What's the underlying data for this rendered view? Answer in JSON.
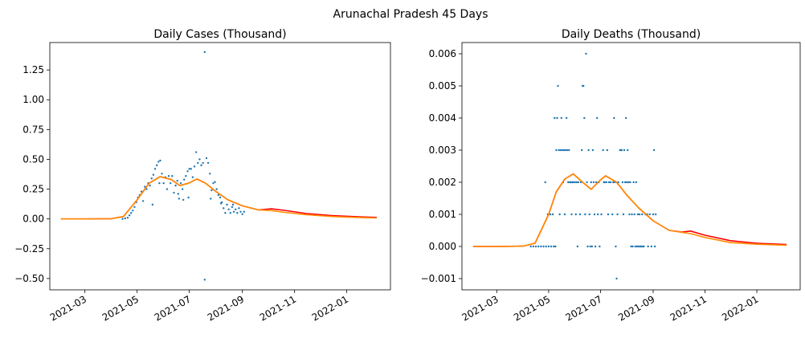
{
  "figure": {
    "suptitle": "Arunachal Pradesh 45 Days"
  },
  "colors": {
    "scatter": "#1f77b4",
    "fit_red": "#ff0000",
    "fit_orange": "#ff8c00",
    "axis": "#000000"
  },
  "chart_data": [
    {
      "type": "scatter",
      "title": "Daily Cases (Thousand)",
      "xlabel": "",
      "ylabel": "",
      "x_range": [
        "2021-01-19",
        "2022-02-21"
      ],
      "ylim": [
        -0.595,
        1.48
      ],
      "y_ticks": [
        -0.5,
        -0.25,
        0.0,
        0.25,
        0.5,
        0.75,
        1.0,
        1.25
      ],
      "y_tick_labels": [
        "−0.50",
        "−0.25",
        "0.00",
        "0.25",
        "0.50",
        "0.75",
        "1.00",
        "1.25"
      ],
      "x_ticks": [
        "2021-03-01",
        "2021-05-01",
        "2021-07-01",
        "2021-09-01",
        "2021-11-01",
        "2022-01-01"
      ],
      "x_tick_labels": [
        "2021-03",
        "2021-05",
        "2021-07",
        "2021-09",
        "2021-11",
        "2022-01"
      ],
      "grid": false,
      "scatter_points": [
        [
          "2021-04-14",
          0.0
        ],
        [
          "2021-04-17",
          0.005
        ],
        [
          "2021-04-20",
          0.01
        ],
        [
          "2021-04-22",
          0.03
        ],
        [
          "2021-04-24",
          0.05
        ],
        [
          "2021-04-26",
          0.07
        ],
        [
          "2021-04-28",
          0.1
        ],
        [
          "2021-04-30",
          0.14
        ],
        [
          "2021-05-02",
          0.18
        ],
        [
          "2021-05-04",
          0.2
        ],
        [
          "2021-05-06",
          0.23
        ],
        [
          "2021-05-08",
          0.15
        ],
        [
          "2021-05-10",
          0.27
        ],
        [
          "2021-05-12",
          0.25
        ],
        [
          "2021-05-14",
          0.3
        ],
        [
          "2021-05-16",
          0.28
        ],
        [
          "2021-05-18",
          0.34
        ],
        [
          "2021-05-20",
          0.37
        ],
        [
          "2021-05-22",
          0.42
        ],
        [
          "2021-05-24",
          0.45
        ],
        [
          "2021-05-26",
          0.48
        ],
        [
          "2021-05-28",
          0.49
        ],
        [
          "2021-05-30",
          0.38
        ],
        [
          "2021-06-01",
          0.3
        ],
        [
          "2021-06-03",
          0.35
        ],
        [
          "2021-06-05",
          0.25
        ],
        [
          "2021-06-07",
          0.36
        ],
        [
          "2021-06-09",
          0.3
        ],
        [
          "2021-06-11",
          0.36
        ],
        [
          "2021-06-13",
          0.22
        ],
        [
          "2021-06-15",
          0.28
        ],
        [
          "2021-06-17",
          0.32
        ],
        [
          "2021-06-19",
          0.17
        ],
        [
          "2021-06-21",
          0.3
        ],
        [
          "2021-06-23",
          0.25
        ],
        [
          "2021-06-25",
          0.33
        ],
        [
          "2021-06-27",
          0.36
        ],
        [
          "2021-06-29",
          0.4
        ],
        [
          "2021-07-01",
          0.42
        ],
        [
          "2021-07-03",
          0.42
        ],
        [
          "2021-07-05",
          0.35
        ],
        [
          "2021-07-07",
          0.44
        ],
        [
          "2021-07-09",
          0.56
        ],
        [
          "2021-07-11",
          0.47
        ],
        [
          "2021-07-13",
          0.5
        ],
        [
          "2021-07-15",
          0.45
        ],
        [
          "2021-07-17",
          0.47
        ],
        [
          "2021-07-19",
          1.4
        ],
        [
          "2021-07-21",
          0.51
        ],
        [
          "2021-07-23",
          0.47
        ],
        [
          "2021-07-25",
          0.38
        ],
        [
          "2021-07-27",
          0.24
        ],
        [
          "2021-07-29",
          0.3
        ],
        [
          "2021-07-31",
          0.31
        ],
        [
          "2021-08-02",
          0.25
        ],
        [
          "2021-08-04",
          0.2
        ],
        [
          "2021-08-06",
          0.18
        ],
        [
          "2021-08-08",
          0.14
        ],
        [
          "2021-08-10",
          0.09
        ],
        [
          "2021-08-12",
          0.05
        ],
        [
          "2021-08-14",
          0.12
        ],
        [
          "2021-08-16",
          0.08
        ],
        [
          "2021-08-18",
          0.05
        ],
        [
          "2021-08-20",
          0.1
        ],
        [
          "2021-08-22",
          0.06
        ],
        [
          "2021-08-24",
          0.08
        ],
        [
          "2021-08-26",
          0.05
        ],
        [
          "2021-08-28",
          0.09
        ],
        [
          "2021-08-30",
          0.06
        ],
        [
          "2021-09-01",
          0.04
        ],
        [
          "2021-09-03",
          0.06
        ],
        [
          "2021-07-19",
          -0.51
        ],
        [
          "2021-05-19",
          0.12
        ],
        [
          "2021-05-27",
          0.3
        ],
        [
          "2021-06-18",
          0.21
        ],
        [
          "2021-07-26",
          0.17
        ],
        [
          "2021-08-07",
          0.13
        ],
        [
          "2021-08-21",
          0.12
        ],
        [
          "2021-06-24",
          0.16
        ],
        [
          "2021-06-30",
          0.18
        ]
      ],
      "fit_red": [
        [
          "2021-02-01",
          0.0
        ],
        [
          "2021-03-01",
          0.0
        ],
        [
          "2021-04-01",
          0.002
        ],
        [
          "2021-04-15",
          0.02
        ],
        [
          "2021-05-01",
          0.16
        ],
        [
          "2021-05-15",
          0.3
        ],
        [
          "2021-05-28",
          0.355
        ],
        [
          "2021-06-10",
          0.33
        ],
        [
          "2021-06-20",
          0.28
        ],
        [
          "2021-06-30",
          0.3
        ],
        [
          "2021-07-10",
          0.335
        ],
        [
          "2021-07-20",
          0.3
        ],
        [
          "2021-08-01",
          0.23
        ],
        [
          "2021-08-15",
          0.16
        ],
        [
          "2021-09-01",
          0.11
        ],
        [
          "2021-09-20",
          0.075
        ],
        [
          "2021-10-05",
          0.085
        ],
        [
          "2021-10-20",
          0.072
        ],
        [
          "2021-11-15",
          0.045
        ],
        [
          "2021-12-15",
          0.028
        ],
        [
          "2022-01-15",
          0.018
        ],
        [
          "2022-02-05",
          0.013
        ]
      ],
      "fit_orange": [
        [
          "2021-02-01",
          0.0
        ],
        [
          "2021-03-01",
          0.0
        ],
        [
          "2021-04-01",
          0.002
        ],
        [
          "2021-04-15",
          0.02
        ],
        [
          "2021-05-01",
          0.16
        ],
        [
          "2021-05-15",
          0.3
        ],
        [
          "2021-05-28",
          0.355
        ],
        [
          "2021-06-10",
          0.33
        ],
        [
          "2021-06-20",
          0.28
        ],
        [
          "2021-06-30",
          0.3
        ],
        [
          "2021-07-10",
          0.335
        ],
        [
          "2021-07-20",
          0.3
        ],
        [
          "2021-08-01",
          0.23
        ],
        [
          "2021-08-15",
          0.16
        ],
        [
          "2021-09-01",
          0.11
        ],
        [
          "2021-09-20",
          0.075
        ],
        [
          "2021-10-05",
          0.07
        ],
        [
          "2021-10-20",
          0.055
        ],
        [
          "2021-11-15",
          0.035
        ],
        [
          "2021-12-15",
          0.02
        ],
        [
          "2022-01-15",
          0.012
        ],
        [
          "2022-02-05",
          0.008
        ]
      ]
    },
    {
      "type": "scatter",
      "title": "Daily Deaths (Thousand)",
      "xlabel": "",
      "ylabel": "",
      "x_range": [
        "2021-01-19",
        "2022-02-21"
      ],
      "ylim": [
        -0.00135,
        0.00635
      ],
      "y_ticks": [
        -0.001,
        0.0,
        0.001,
        0.002,
        0.003,
        0.004,
        0.005,
        0.006
      ],
      "y_tick_labels": [
        "−0.001",
        "0.000",
        "0.001",
        "0.002",
        "0.003",
        "0.004",
        "0.005",
        "0.006"
      ],
      "x_ticks": [
        "2021-03-01",
        "2021-05-01",
        "2021-07-01",
        "2021-09-01",
        "2021-11-01",
        "2022-01-01"
      ],
      "x_tick_labels": [
        "2021-03",
        "2021-05",
        "2021-07",
        "2021-09",
        "2021-11",
        "2022-01"
      ],
      "grid": false,
      "scatter_points": [
        [
          "2021-04-10",
          0.0
        ],
        [
          "2021-04-13",
          0.0
        ],
        [
          "2021-04-16",
          0.0
        ],
        [
          "2021-04-19",
          0.0
        ],
        [
          "2021-04-22",
          0.0
        ],
        [
          "2021-04-25",
          0.0
        ],
        [
          "2021-04-27",
          0.002
        ],
        [
          "2021-04-28",
          0.0
        ],
        [
          "2021-04-30",
          0.001
        ],
        [
          "2021-05-01",
          0.0
        ],
        [
          "2021-05-03",
          0.001
        ],
        [
          "2021-05-04",
          0.0
        ],
        [
          "2021-05-06",
          0.001
        ],
        [
          "2021-05-07",
          0.0
        ],
        [
          "2021-05-08",
          0.004
        ],
        [
          "2021-05-09",
          0.0
        ],
        [
          "2021-05-10",
          0.003
        ],
        [
          "2021-05-11",
          0.004
        ],
        [
          "2021-05-12",
          0.005
        ],
        [
          "2021-05-13",
          0.003
        ],
        [
          "2021-05-14",
          0.001
        ],
        [
          "2021-05-15",
          0.003
        ],
        [
          "2021-05-16",
          0.004
        ],
        [
          "2021-05-17",
          0.003
        ],
        [
          "2021-05-18",
          0.002
        ],
        [
          "2021-05-19",
          0.003
        ],
        [
          "2021-05-20",
          0.001
        ],
        [
          "2021-05-21",
          0.003
        ],
        [
          "2021-05-22",
          0.004
        ],
        [
          "2021-05-23",
          0.003
        ],
        [
          "2021-05-24",
          0.002
        ],
        [
          "2021-05-25",
          0.003
        ],
        [
          "2021-05-26",
          0.002
        ],
        [
          "2021-05-27",
          0.002
        ],
        [
          "2021-05-28",
          0.001
        ],
        [
          "2021-05-29",
          0.002
        ],
        [
          "2021-05-30",
          0.002
        ],
        [
          "2021-06-01",
          0.002
        ],
        [
          "2021-06-02",
          0.001
        ],
        [
          "2021-06-03",
          0.002
        ],
        [
          "2021-06-04",
          0.0
        ],
        [
          "2021-06-05",
          0.002
        ],
        [
          "2021-06-07",
          0.001
        ],
        [
          "2021-06-08",
          0.002
        ],
        [
          "2021-06-09",
          0.003
        ],
        [
          "2021-06-10",
          0.005
        ],
        [
          "2021-06-11",
          0.005
        ],
        [
          "2021-06-12",
          0.004
        ],
        [
          "2021-06-13",
          0.001
        ],
        [
          "2021-06-14",
          0.006
        ],
        [
          "2021-06-15",
          0.002
        ],
        [
          "2021-06-16",
          0.0
        ],
        [
          "2021-06-17",
          0.003
        ],
        [
          "2021-06-18",
          0.001
        ],
        [
          "2021-06-19",
          0.0
        ],
        [
          "2021-06-20",
          0.002
        ],
        [
          "2021-06-21",
          0.0
        ],
        [
          "2021-06-22",
          0.003
        ],
        [
          "2021-06-23",
          0.002
        ],
        [
          "2021-06-24",
          0.001
        ],
        [
          "2021-06-25",
          0.0
        ],
        [
          "2021-06-26",
          0.002
        ],
        [
          "2021-06-27",
          0.004
        ],
        [
          "2021-06-28",
          0.001
        ],
        [
          "2021-06-29",
          0.002
        ],
        [
          "2021-06-30",
          0.0
        ],
        [
          "2021-07-02",
          0.001
        ],
        [
          "2021-07-04",
          0.003
        ],
        [
          "2021-07-05",
          0.002
        ],
        [
          "2021-07-06",
          0.002
        ],
        [
          "2021-07-08",
          0.002
        ],
        [
          "2021-07-09",
          0.003
        ],
        [
          "2021-07-10",
          0.001
        ],
        [
          "2021-07-11",
          0.002
        ],
        [
          "2021-07-13",
          0.002
        ],
        [
          "2021-07-15",
          0.001
        ],
        [
          "2021-07-16",
          0.002
        ],
        [
          "2021-07-17",
          0.004
        ],
        [
          "2021-07-18",
          0.002
        ],
        [
          "2021-07-19",
          0.0
        ],
        [
          "2021-07-20",
          -0.001
        ],
        [
          "2021-07-21",
          0.001
        ],
        [
          "2021-07-22",
          0.002
        ],
        [
          "2021-07-24",
          0.003
        ],
        [
          "2021-07-25",
          0.003
        ],
        [
          "2021-07-26",
          0.003
        ],
        [
          "2021-07-27",
          0.002
        ],
        [
          "2021-07-28",
          0.001
        ],
        [
          "2021-07-29",
          0.003
        ],
        [
          "2021-07-30",
          0.002
        ],
        [
          "2021-07-31",
          0.004
        ],
        [
          "2021-08-01",
          0.002
        ],
        [
          "2021-08-02",
          0.003
        ],
        [
          "2021-08-03",
          0.002
        ],
        [
          "2021-08-04",
          0.001
        ],
        [
          "2021-08-05",
          0.002
        ],
        [
          "2021-08-06",
          0.0
        ],
        [
          "2021-08-07",
          0.001
        ],
        [
          "2021-08-08",
          0.0
        ],
        [
          "2021-08-09",
          0.002
        ],
        [
          "2021-08-10",
          0.001
        ],
        [
          "2021-08-11",
          0.0
        ],
        [
          "2021-08-12",
          0.002
        ],
        [
          "2021-08-13",
          0.0
        ],
        [
          "2021-08-14",
          0.001
        ],
        [
          "2021-08-15",
          0.0
        ],
        [
          "2021-08-16",
          0.001
        ],
        [
          "2021-08-17",
          0.0
        ],
        [
          "2021-08-18",
          0.0
        ],
        [
          "2021-08-19",
          0.001
        ],
        [
          "2021-08-20",
          0.0
        ],
        [
          "2021-08-21",
          0.0
        ],
        [
          "2021-08-23",
          0.001
        ],
        [
          "2021-08-25",
          0.001
        ],
        [
          "2021-08-26",
          0.0
        ],
        [
          "2021-08-28",
          0.001
        ],
        [
          "2021-08-30",
          0.0
        ],
        [
          "2021-09-01",
          0.001
        ],
        [
          "2021-09-02",
          0.003
        ],
        [
          "2021-09-03",
          0.0
        ],
        [
          "2021-09-04",
          0.001
        ]
      ],
      "fit_red": [
        [
          "2021-02-01",
          0.0
        ],
        [
          "2021-03-01",
          0.0
        ],
        [
          "2021-04-01",
          1e-05
        ],
        [
          "2021-04-15",
          0.0001
        ],
        [
          "2021-05-01",
          0.001
        ],
        [
          "2021-05-10",
          0.0017
        ],
        [
          "2021-05-20",
          0.0021
        ],
        [
          "2021-05-30",
          0.00226
        ],
        [
          "2021-06-10",
          0.002
        ],
        [
          "2021-06-20",
          0.00178
        ],
        [
          "2021-06-30",
          0.00205
        ],
        [
          "2021-07-07",
          0.0022
        ],
        [
          "2021-07-20",
          0.002
        ],
        [
          "2021-08-01",
          0.0016
        ],
        [
          "2021-08-15",
          0.0012
        ],
        [
          "2021-09-01",
          0.0008
        ],
        [
          "2021-09-20",
          0.0005
        ],
        [
          "2021-10-05",
          0.00045
        ],
        [
          "2021-10-15",
          0.00048
        ],
        [
          "2021-11-01",
          0.00035
        ],
        [
          "2021-12-01",
          0.00018
        ],
        [
          "2022-01-01",
          0.0001
        ],
        [
          "2022-02-05",
          6e-05
        ]
      ],
      "fit_orange": [
        [
          "2021-02-01",
          0.0
        ],
        [
          "2021-03-01",
          0.0
        ],
        [
          "2021-04-01",
          1e-05
        ],
        [
          "2021-04-15",
          0.0001
        ],
        [
          "2021-05-01",
          0.001
        ],
        [
          "2021-05-10",
          0.0017
        ],
        [
          "2021-05-20",
          0.0021
        ],
        [
          "2021-05-30",
          0.00226
        ],
        [
          "2021-06-10",
          0.002
        ],
        [
          "2021-06-20",
          0.00178
        ],
        [
          "2021-06-30",
          0.00205
        ],
        [
          "2021-07-07",
          0.0022
        ],
        [
          "2021-07-20",
          0.002
        ],
        [
          "2021-08-01",
          0.0016
        ],
        [
          "2021-08-15",
          0.0012
        ],
        [
          "2021-09-01",
          0.0008
        ],
        [
          "2021-09-20",
          0.0005
        ],
        [
          "2021-10-05",
          0.00044
        ],
        [
          "2021-10-15",
          0.0004
        ],
        [
          "2021-11-01",
          0.00028
        ],
        [
          "2021-12-01",
          0.00012
        ],
        [
          "2022-01-01",
          7e-05
        ],
        [
          "2022-02-05",
          4e-05
        ]
      ]
    }
  ]
}
